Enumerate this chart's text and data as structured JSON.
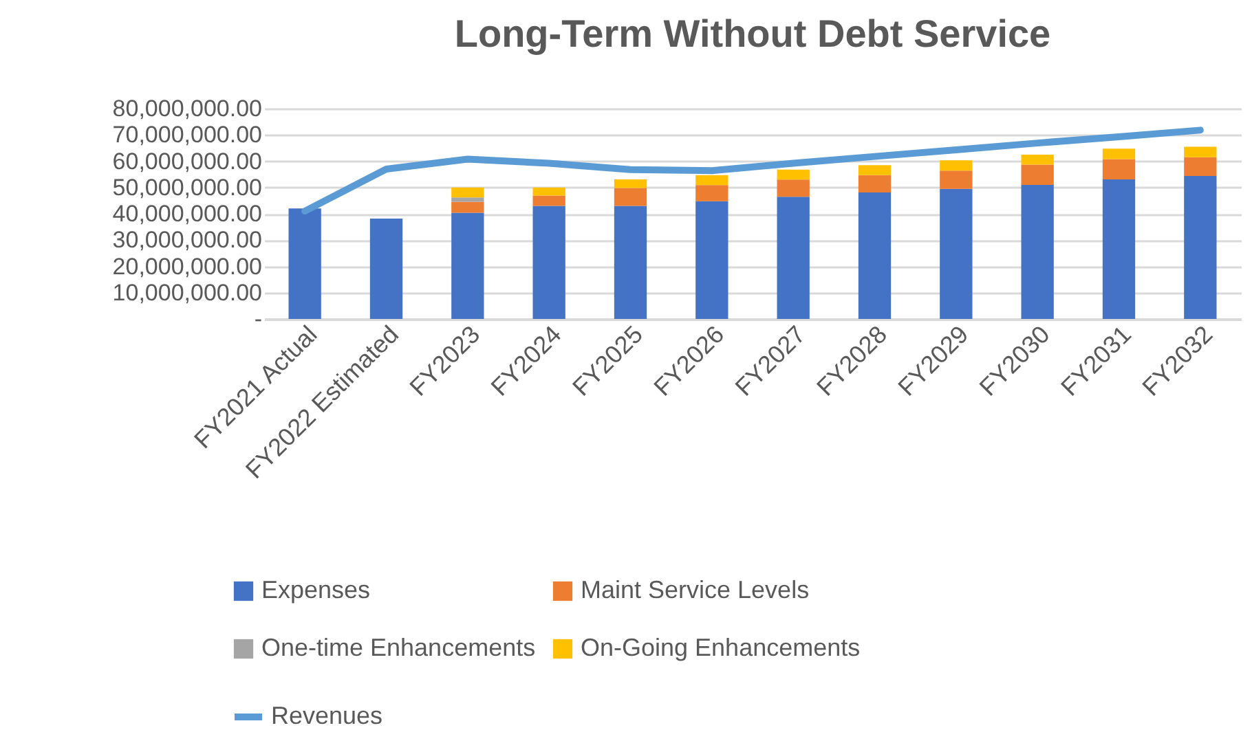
{
  "chart_data": {
    "type": "bar",
    "title": "Long-Term Without Debt Service",
    "categories": [
      "FY2021 Actual",
      "FY2022 Estimated",
      "FY2023",
      "FY2024",
      "FY2025",
      "FY2026",
      "FY2027",
      "FY2028",
      "FY2029",
      "FY2030",
      "FY2031",
      "FY2032"
    ],
    "stacked": true,
    "grid": "y",
    "legend": "bottom",
    "ylim": [
      0,
      80000000
    ],
    "yticks": [
      {
        "value": 0,
        "label": "-"
      },
      {
        "value": 10000000,
        "label": "10,000,000.00"
      },
      {
        "value": 20000000,
        "label": "20,000,000.00"
      },
      {
        "value": 30000000,
        "label": "30,000,000.00"
      },
      {
        "value": 40000000,
        "label": "40,000,000.00"
      },
      {
        "value": 50000000,
        "label": "50,000,000.00"
      },
      {
        "value": 60000000,
        "label": "60,000,000.00"
      },
      {
        "value": 70000000,
        "label": "70,000,000.00"
      },
      {
        "value": 80000000,
        "label": "80,000,000.00"
      }
    ],
    "series": [
      {
        "name": "Expenses",
        "type": "bar",
        "color": "#4472c4",
        "values": [
          42000000,
          38200000,
          40400000,
          43000000,
          43000000,
          44800000,
          46500000,
          48100000,
          49500000,
          51000000,
          53100000,
          54400000
        ]
      },
      {
        "name": "Maint Service Levels",
        "type": "bar",
        "color": "#ed7d31",
        "values": [
          null,
          null,
          4200000,
          3900000,
          6800000,
          6100000,
          6500000,
          6600000,
          6900000,
          7700000,
          7700000,
          7100000
        ]
      },
      {
        "name": "One-time Enhancements",
        "type": "bar",
        "color": "#a5a5a5",
        "values": [
          null,
          null,
          1600000,
          null,
          null,
          null,
          null,
          null,
          null,
          null,
          null,
          null
        ]
      },
      {
        "name": "On-Going Enhancements",
        "type": "bar",
        "color": "#ffc000",
        "values": [
          null,
          null,
          3800000,
          3100000,
          3300000,
          3800000,
          3800000,
          3800000,
          3900000,
          3800000,
          4000000,
          4000000
        ]
      },
      {
        "name": "Revenues",
        "type": "line",
        "color": "#5b9bd5",
        "values": [
          41000000,
          57000000,
          60800000,
          59200000,
          56800000,
          56400000,
          59200000,
          61800000,
          64300000,
          66900000,
          69300000,
          71800000
        ]
      }
    ]
  }
}
